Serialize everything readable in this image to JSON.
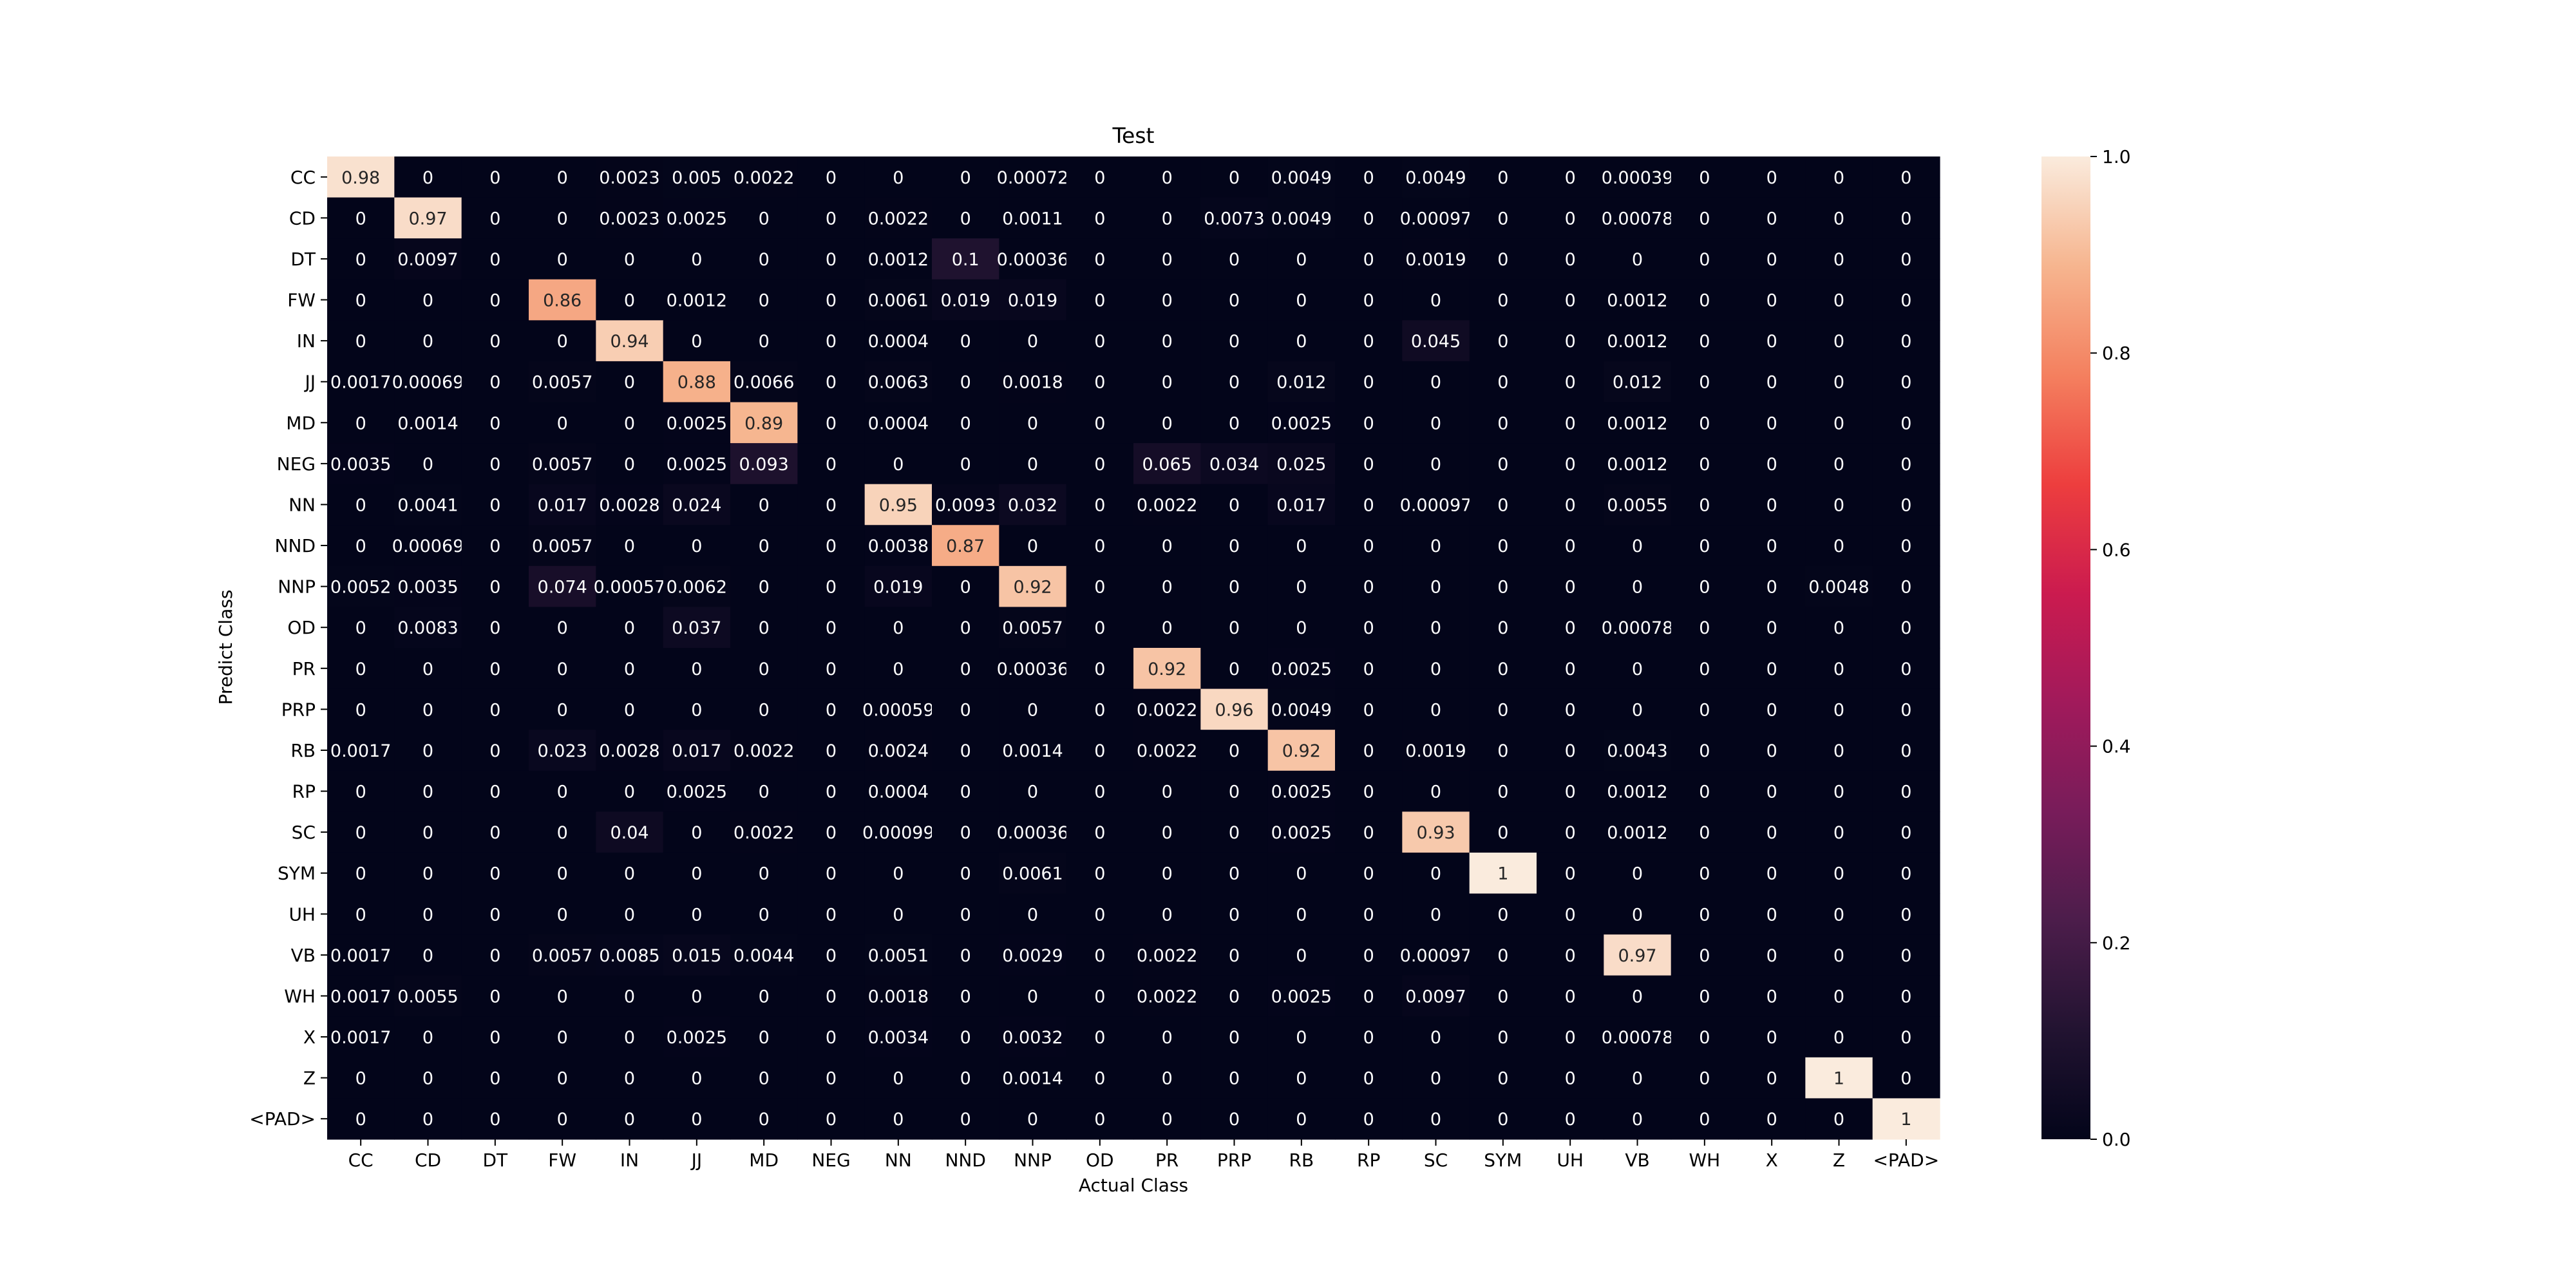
{
  "chart_data": {
    "type": "heatmap",
    "title": "Test",
    "xlabel": "Actual Class",
    "ylabel": "Predict Class",
    "x_categories": [
      "CC",
      "CD",
      "DT",
      "FW",
      "IN",
      "JJ",
      "MD",
      "NEG",
      "NN",
      "NND",
      "NNP",
      "OD",
      "PR",
      "PRP",
      "RB",
      "RP",
      "SC",
      "SYM",
      "UH",
      "VB",
      "WH",
      "X",
      "Z",
      "<PAD>"
    ],
    "y_categories": [
      "CC",
      "CD",
      "DT",
      "FW",
      "IN",
      "JJ",
      "MD",
      "NEG",
      "NN",
      "NND",
      "NNP",
      "OD",
      "PR",
      "PRP",
      "RB",
      "RP",
      "SC",
      "SYM",
      "UH",
      "VB",
      "WH",
      "X",
      "Z",
      "<PAD>"
    ],
    "cell_labels": [
      [
        "0.98",
        "0",
        "0",
        "0",
        "0.0023",
        "0.005",
        "0.0022",
        "0",
        "0",
        "0",
        "0.00072",
        "0",
        "0",
        "0",
        "0.0049",
        "0",
        "0.0049",
        "0",
        "0",
        "0.00039",
        "0",
        "0",
        "0",
        "0"
      ],
      [
        "0",
        "0.97",
        "0",
        "0",
        "0.0023",
        "0.0025",
        "0",
        "0",
        "0.0022",
        "0",
        "0.0011",
        "0",
        "0",
        "0.0073",
        "0.0049",
        "0",
        "0.00097",
        "0",
        "0",
        "0.00078",
        "0",
        "0",
        "0",
        "0"
      ],
      [
        "0",
        "0.0097",
        "0",
        "0",
        "0",
        "0",
        "0",
        "0",
        "0.0012",
        "0.1",
        "0.00036",
        "0",
        "0",
        "0",
        "0",
        "0",
        "0.0019",
        "0",
        "0",
        "0",
        "0",
        "0",
        "0",
        "0"
      ],
      [
        "0",
        "0",
        "0",
        "0.86",
        "0",
        "0.0012",
        "0",
        "0",
        "0.0061",
        "0.019",
        "0.019",
        "0",
        "0",
        "0",
        "0",
        "0",
        "0",
        "0",
        "0",
        "0.0012",
        "0",
        "0",
        "0",
        "0"
      ],
      [
        "0",
        "0",
        "0",
        "0",
        "0.94",
        "0",
        "0",
        "0",
        "0.0004",
        "0",
        "0",
        "0",
        "0",
        "0",
        "0",
        "0",
        "0.045",
        "0",
        "0",
        "0.0012",
        "0",
        "0",
        "0",
        "0"
      ],
      [
        "0.0017",
        "0.00069",
        "0",
        "0.0057",
        "0",
        "0.88",
        "0.0066",
        "0",
        "0.0063",
        "0",
        "0.0018",
        "0",
        "0",
        "0",
        "0.012",
        "0",
        "0",
        "0",
        "0",
        "0.012",
        "0",
        "0",
        "0",
        "0"
      ],
      [
        "0",
        "0.0014",
        "0",
        "0",
        "0",
        "0.0025",
        "0.89",
        "0",
        "0.0004",
        "0",
        "0",
        "0",
        "0",
        "0",
        "0.0025",
        "0",
        "0",
        "0",
        "0",
        "0.0012",
        "0",
        "0",
        "0",
        "0"
      ],
      [
        "0.0035",
        "0",
        "0",
        "0.0057",
        "0",
        "0.0025",
        "0.093",
        "0",
        "0",
        "0",
        "0",
        "0",
        "0.065",
        "0.034",
        "0.025",
        "0",
        "0",
        "0",
        "0",
        "0.0012",
        "0",
        "0",
        "0",
        "0"
      ],
      [
        "0",
        "0.0041",
        "0",
        "0.017",
        "0.0028",
        "0.024",
        "0",
        "0",
        "0.95",
        "0.0093",
        "0.032",
        "0",
        "0.0022",
        "0",
        "0.017",
        "0",
        "0.00097",
        "0",
        "0",
        "0.0055",
        "0",
        "0",
        "0",
        "0"
      ],
      [
        "0",
        "0.00069",
        "0",
        "0.0057",
        "0",
        "0",
        "0",
        "0",
        "0.0038",
        "0.87",
        "0",
        "0",
        "0",
        "0",
        "0",
        "0",
        "0",
        "0",
        "0",
        "0",
        "0",
        "0",
        "0",
        "0"
      ],
      [
        "0.0052",
        "0.0035",
        "0",
        "0.074",
        "0.00057",
        "0.0062",
        "0",
        "0",
        "0.019",
        "0",
        "0.92",
        "0",
        "0",
        "0",
        "0",
        "0",
        "0",
        "0",
        "0",
        "0",
        "0",
        "0",
        "0.0048",
        "0"
      ],
      [
        "0",
        "0.0083",
        "0",
        "0",
        "0",
        "0.037",
        "0",
        "0",
        "0",
        "0",
        "0.0057",
        "0",
        "0",
        "0",
        "0",
        "0",
        "0",
        "0",
        "0",
        "0.00078",
        "0",
        "0",
        "0",
        "0"
      ],
      [
        "0",
        "0",
        "0",
        "0",
        "0",
        "0",
        "0",
        "0",
        "0",
        "0",
        "0.00036",
        "0",
        "0.92",
        "0",
        "0.0025",
        "0",
        "0",
        "0",
        "0",
        "0",
        "0",
        "0",
        "0",
        "0"
      ],
      [
        "0",
        "0",
        "0",
        "0",
        "0",
        "0",
        "0",
        "0",
        "0.00059",
        "0",
        "0",
        "0",
        "0.0022",
        "0.96",
        "0.0049",
        "0",
        "0",
        "0",
        "0",
        "0",
        "0",
        "0",
        "0",
        "0"
      ],
      [
        "0.0017",
        "0",
        "0",
        "0.023",
        "0.0028",
        "0.017",
        "0.0022",
        "0",
        "0.0024",
        "0",
        "0.0014",
        "0",
        "0.0022",
        "0",
        "0.92",
        "0",
        "0.0019",
        "0",
        "0",
        "0.0043",
        "0",
        "0",
        "0",
        "0"
      ],
      [
        "0",
        "0",
        "0",
        "0",
        "0",
        "0.0025",
        "0",
        "0",
        "0.0004",
        "0",
        "0",
        "0",
        "0",
        "0",
        "0.0025",
        "0",
        "0",
        "0",
        "0",
        "0.0012",
        "0",
        "0",
        "0",
        "0"
      ],
      [
        "0",
        "0",
        "0",
        "0",
        "0.04",
        "0",
        "0.0022",
        "0",
        "0.00099",
        "0",
        "0.00036",
        "0",
        "0",
        "0",
        "0.0025",
        "0",
        "0.93",
        "0",
        "0",
        "0.0012",
        "0",
        "0",
        "0",
        "0"
      ],
      [
        "0",
        "0",
        "0",
        "0",
        "0",
        "0",
        "0",
        "0",
        "0",
        "0",
        "0.0061",
        "0",
        "0",
        "0",
        "0",
        "0",
        "0",
        "1",
        "0",
        "0",
        "0",
        "0",
        "0",
        "0"
      ],
      [
        "0",
        "0",
        "0",
        "0",
        "0",
        "0",
        "0",
        "0",
        "0",
        "0",
        "0",
        "0",
        "0",
        "0",
        "0",
        "0",
        "0",
        "0",
        "0",
        "0",
        "0",
        "0",
        "0",
        "0"
      ],
      [
        "0.0017",
        "0",
        "0",
        "0.0057",
        "0.0085",
        "0.015",
        "0.0044",
        "0",
        "0.0051",
        "0",
        "0.0029",
        "0",
        "0.0022",
        "0",
        "0",
        "0",
        "0.00097",
        "0",
        "0",
        "0.97",
        "0",
        "0",
        "0",
        "0"
      ],
      [
        "0.0017",
        "0.0055",
        "0",
        "0",
        "0",
        "0",
        "0",
        "0",
        "0.0018",
        "0",
        "0",
        "0",
        "0.0022",
        "0",
        "0.0025",
        "0",
        "0.0097",
        "0",
        "0",
        "0",
        "0",
        "0",
        "0",
        "0"
      ],
      [
        "0.0017",
        "0",
        "0",
        "0",
        "0",
        "0.0025",
        "0",
        "0",
        "0.0034",
        "0",
        "0.0032",
        "0",
        "0",
        "0",
        "0",
        "0",
        "0",
        "0",
        "0",
        "0.00078",
        "0",
        "0",
        "0",
        "0"
      ],
      [
        "0",
        "0",
        "0",
        "0",
        "0",
        "0",
        "0",
        "0",
        "0",
        "0",
        "0.0014",
        "0",
        "0",
        "0",
        "0",
        "0",
        "0",
        "0",
        "0",
        "0",
        "0",
        "0",
        "1",
        "0"
      ],
      [
        "0",
        "0",
        "0",
        "0",
        "0",
        "0",
        "0",
        "0",
        "0",
        "0",
        "0",
        "0",
        "0",
        "0",
        "0",
        "0",
        "0",
        "0",
        "0",
        "0",
        "0",
        "0",
        "0",
        "1"
      ]
    ],
    "colorbar": {
      "min": 0,
      "max": 1,
      "ticks": [
        0,
        0.2,
        0.4,
        0.6,
        0.8,
        1
      ],
      "tick_labels": [
        "0.0",
        "0.2",
        "0.4",
        "0.6",
        "0.8",
        "1.0"
      ],
      "colormap_stops": [
        "#03051a",
        "#221331",
        "#4c1d4b",
        "#781c5a",
        "#a11a5b",
        "#cb1b4f",
        "#ed3e3e",
        "#f4805f",
        "#f6b58f",
        "#faebdd"
      ]
    },
    "grid": false,
    "colorbar_placement": "right"
  }
}
